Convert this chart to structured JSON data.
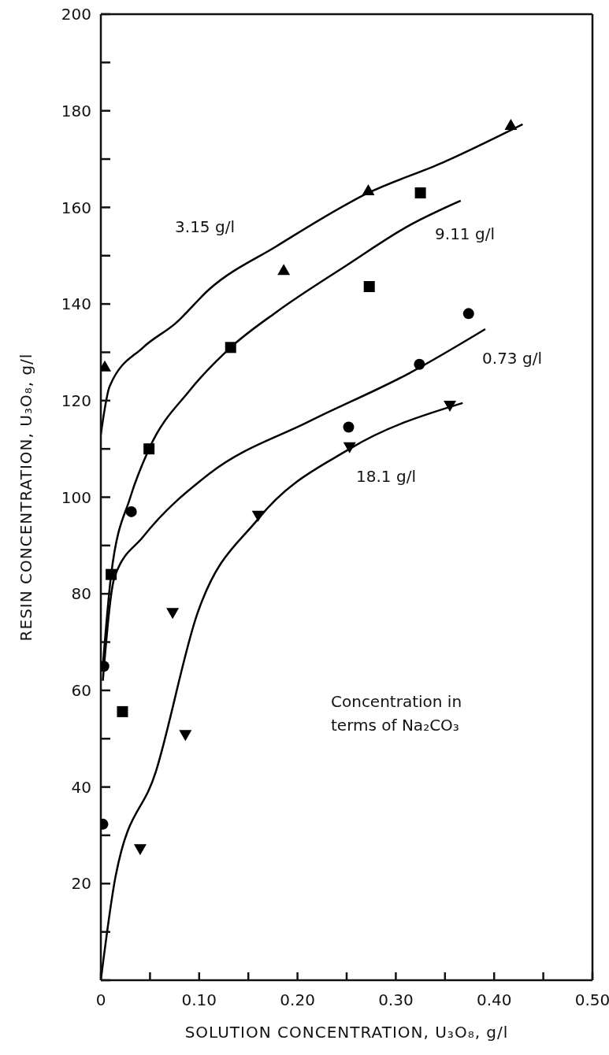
{
  "chart_data": {
    "type": "scatter",
    "xlabel": "SOLUTION CONCENTRATION, U₃O₈, g/l",
    "ylabel": "RESIN CONCENTRATION, U₃O₈, g/l",
    "xlim": [
      0,
      0.5
    ],
    "ylim": [
      0,
      200
    ],
    "xticks": [
      {
        "value": 0,
        "label": "0"
      },
      {
        "value": 0.05,
        "label": null
      },
      {
        "value": 0.1,
        "label": "0.10"
      },
      {
        "value": 0.15,
        "label": null
      },
      {
        "value": 0.2,
        "label": "0.20"
      },
      {
        "value": 0.25,
        "label": null
      },
      {
        "value": 0.3,
        "label": "0.30"
      },
      {
        "value": 0.35,
        "label": null
      },
      {
        "value": 0.4,
        "label": "0.40"
      },
      {
        "value": 0.45,
        "label": null
      },
      {
        "value": 0.5,
        "label": "0.50"
      }
    ],
    "yticks": [
      {
        "value": 0,
        "label": null
      },
      {
        "value": 10,
        "label": null
      },
      20,
      {
        "value": 30,
        "label": null
      },
      40,
      {
        "value": 50,
        "label": null
      },
      60,
      {
        "value": 70,
        "label": null
      },
      80,
      {
        "value": 90,
        "label": null
      },
      100,
      {
        "value": 110,
        "label": null
      },
      120,
      {
        "value": 130,
        "label": null
      },
      140,
      {
        "value": 150,
        "label": null
      },
      160,
      {
        "value": 170,
        "label": null
      },
      180,
      {
        "value": 190,
        "label": null
      },
      200
    ],
    "series": [
      {
        "marker": "triangle",
        "color": "#000000",
        "x": [
          0.004,
          0.186,
          0.272,
          0.417
        ],
        "values": [
          127,
          147,
          163.5,
          177
        ]
      },
      {
        "marker": "square",
        "color": "#000000",
        "x": [
          0.0105,
          0.022,
          0.049,
          0.132,
          0.273,
          0.325
        ],
        "values": [
          84,
          55.6,
          110,
          131,
          143.6,
          163
        ]
      },
      {
        "marker": "circle",
        "color": "#000000",
        "x": [
          0.002,
          0.003,
          0.031,
          0.252,
          0.324,
          0.374
        ],
        "values": [
          32.3,
          65,
          97,
          114.5,
          127.5,
          138
        ]
      },
      {
        "marker": "triangle-down",
        "color": "#000000",
        "x": [
          0.04,
          0.073,
          0.086,
          0.16,
          0.253,
          0.355
        ],
        "values": [
          27.2,
          76.1,
          50.8,
          96.2,
          110.4,
          119
        ]
      },
      {
        "type": "line",
        "marker": "none",
        "color": "#000000",
        "x": [
          0,
          0.009,
          0.043,
          0.076,
          0.11,
          0.179,
          0.272,
          0.348,
          0.429
        ],
        "values": [
          113,
          123,
          131,
          136,
          143,
          152,
          163,
          169.3,
          177.2
        ]
      },
      {
        "type": "line",
        "marker": "none",
        "color": "#000000",
        "x": [
          0.002,
          0.0105,
          0.03,
          0.049,
          0.09,
          0.132,
          0.179,
          0.25,
          0.314,
          0.366
        ],
        "values": [
          65,
          84,
          100,
          110,
          122,
          131,
          138.4,
          148,
          156.3,
          161.4
        ]
      },
      {
        "type": "line",
        "marker": "none",
        "color": "#000000",
        "x": [
          0.002,
          0.014,
          0.043,
          0.11,
          0.212,
          0.314,
          0.391
        ],
        "values": [
          62,
          83.5,
          91.8,
          104.8,
          115.7,
          125.7,
          134.8
        ]
      },
      {
        "type": "line",
        "marker": "none",
        "color": "#000000",
        "x": [
          0,
          0.015,
          0.056,
          0.098,
          0.16,
          0.253,
          0.368
        ],
        "values": [
          0,
          21.5,
          43.2,
          75.8,
          95.5,
          110,
          119.5
        ]
      }
    ],
    "annotations": [
      "3.15 g/l",
      "9.11 g/l",
      "0.73 g/l",
      "18.1 g/l",
      "Concentration in terms of Na₂CO₃"
    ]
  }
}
